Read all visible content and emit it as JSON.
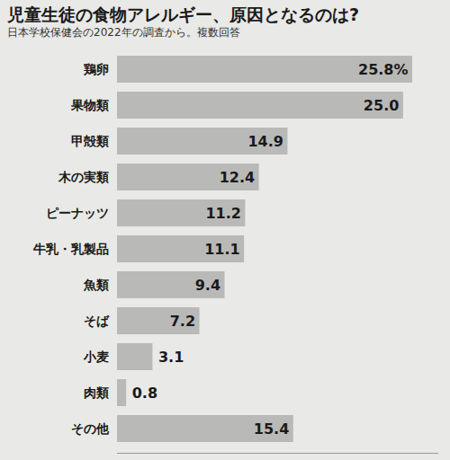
{
  "chart_data": {
    "type": "bar",
    "title": "児童生徒の食物アレルギー、原因となるのは?",
    "subtitle": "日本学校保健会の2022年の調査から。複数回答",
    "orientation": "horizontal",
    "categories": [
      "鶏卵",
      "果物類",
      "甲殻類",
      "木の実類",
      "ピーナッツ",
      "牛乳・乳製品",
      "魚類",
      "そば",
      "小麦",
      "肉類",
      "その他"
    ],
    "values": [
      25.8,
      25.0,
      14.9,
      12.4,
      11.2,
      11.1,
      9.4,
      7.2,
      3.1,
      0.8,
      15.4
    ],
    "value_labels": [
      "25.8%",
      "25.0",
      "14.9",
      "12.4",
      "11.2",
      "11.1",
      "9.4",
      "7.2",
      "3.1",
      "0.8",
      "15.4"
    ],
    "data_labels": true,
    "color": "#b9b9b7",
    "xlim": [
      0,
      28
    ],
    "xticks": [],
    "tick_labels": "y",
    "grid": false
  }
}
